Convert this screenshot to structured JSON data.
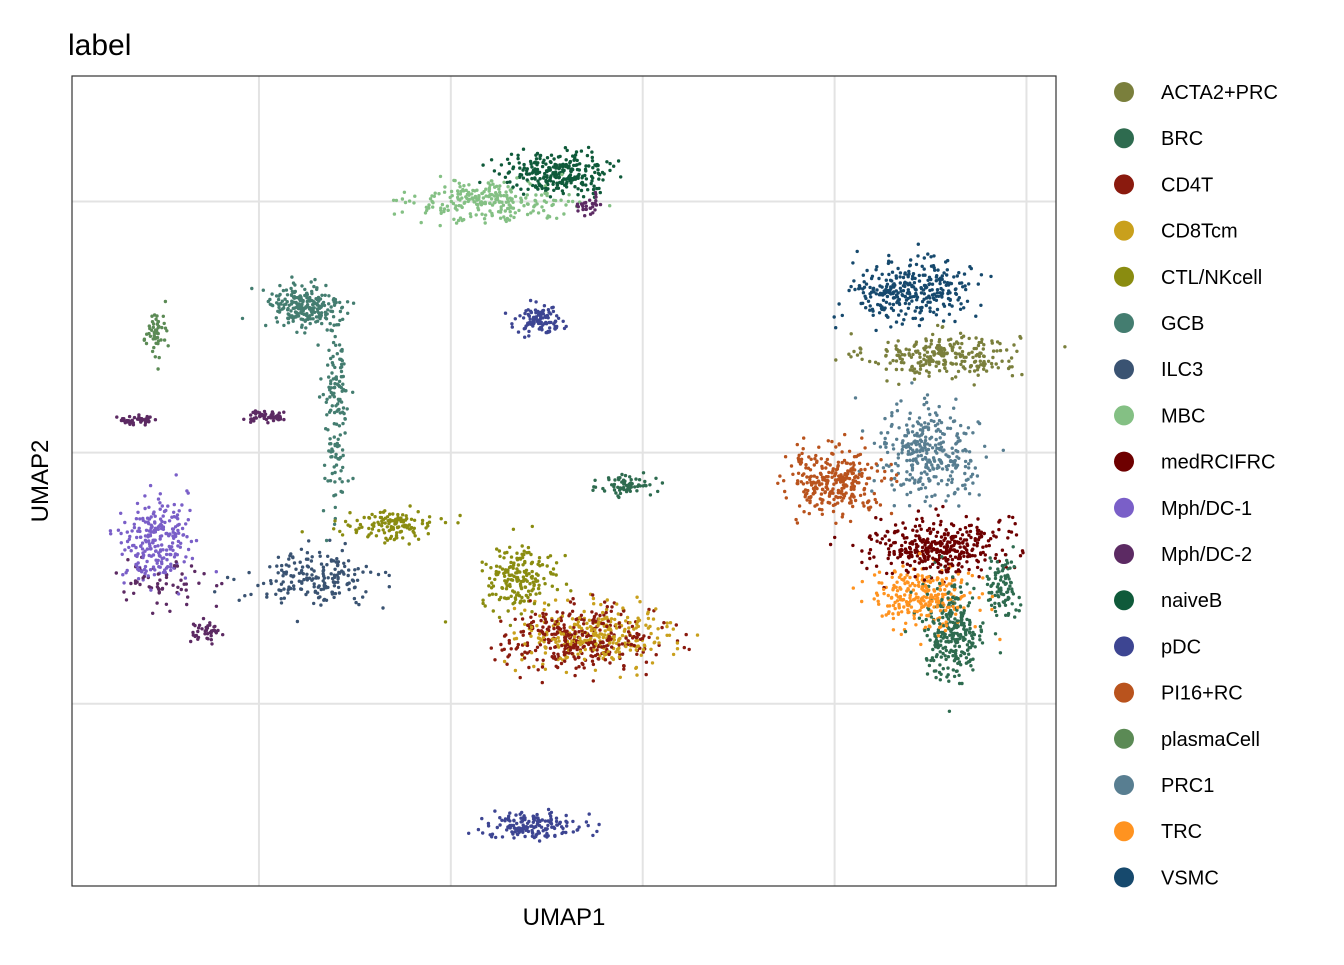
{
  "chart_data": {
    "type": "scatter",
    "title": "label",
    "xlabel": "UMAP1",
    "ylabel": "UMAP2",
    "grid": true,
    "tick_labels_shown": false,
    "legend_position": "right",
    "xlim": [
      0,
      100
    ],
    "ylim": [
      0,
      100
    ],
    "series": [
      {
        "name": "ACTA2+PRC",
        "color": "#7a7f3c",
        "clusters": [
          [
            88.5,
            65.5,
            7,
            2.5,
            260
          ]
        ]
      },
      {
        "name": "BRC",
        "color": "#2e6b4f",
        "clusters": [
          [
            56.5,
            49.5,
            2.5,
            1.4,
            70
          ],
          [
            89.5,
            31.5,
            3,
            5.5,
            280
          ],
          [
            94.5,
            37,
            1.5,
            3.5,
            90
          ]
        ]
      },
      {
        "name": "CD4T",
        "color": "#8a1a0e",
        "clusters": [
          [
            51.5,
            30.5,
            7,
            3.5,
            330
          ]
        ]
      },
      {
        "name": "CD8Tcm",
        "color": "#c9a01c",
        "clusters": [
          [
            53.5,
            31,
            7,
            3.5,
            280
          ]
        ]
      },
      {
        "name": "CTL/NKcell",
        "color": "#8a8c10",
        "clusters": [
          [
            45.5,
            38,
            3.5,
            3.5,
            190
          ],
          [
            32.5,
            44.5,
            4,
            1.6,
            130
          ]
        ]
      },
      {
        "name": "GCB",
        "color": "#447d70",
        "clusters": [
          [
            23.5,
            71.5,
            3.5,
            2.6,
            230
          ],
          [
            26.8,
            58,
            1.2,
            12,
            150
          ]
        ]
      },
      {
        "name": "ILC3",
        "color": "#3a5372",
        "clusters": [
          [
            24.5,
            38,
            6,
            3,
            190
          ]
        ]
      },
      {
        "name": "MBC",
        "color": "#84c084",
        "clusters": [
          [
            42.5,
            84.5,
            7,
            2.2,
            250
          ]
        ]
      },
      {
        "name": "medRCIFRC",
        "color": "#6e0000",
        "clusters": [
          [
            88,
            42,
            6,
            3.2,
            380
          ]
        ]
      },
      {
        "name": "Mph/DC-1",
        "color": "#7a5fc8",
        "clusters": [
          [
            8.5,
            42.5,
            3,
            5,
            240
          ]
        ]
      },
      {
        "name": "Mph/DC-2",
        "color": "#5c2a63",
        "clusters": [
          [
            6.5,
            57.5,
            1.8,
            0.5,
            40
          ],
          [
            19.5,
            58,
            2.2,
            0.6,
            50
          ],
          [
            13.5,
            31.5,
            1.4,
            1.2,
            40
          ],
          [
            10,
            37.5,
            4,
            2.5,
            60
          ],
          [
            52.5,
            84,
            1.5,
            1.2,
            30
          ]
        ]
      },
      {
        "name": "naiveB",
        "color": "#0f5a3a",
        "clusters": [
          [
            49.5,
            88,
            5,
            2.2,
            280
          ]
        ]
      },
      {
        "name": "pDC",
        "color": "#3d4592",
        "clusters": [
          [
            47.5,
            70,
            2.2,
            1.5,
            110
          ],
          [
            47,
            7.5,
            4.5,
            1.5,
            160
          ]
        ]
      },
      {
        "name": "PI16+RC",
        "color": "#b9531d",
        "clusters": [
          [
            77.5,
            50,
            4.5,
            3.5,
            300
          ]
        ]
      },
      {
        "name": "plasmaCell",
        "color": "#5b8a55",
        "clusters": [
          [
            8.5,
            68.5,
            1.2,
            2.5,
            50
          ]
        ]
      },
      {
        "name": "PRC1",
        "color": "#587e91",
        "clusters": [
          [
            87,
            53.5,
            4.5,
            5,
            320
          ]
        ]
      },
      {
        "name": "TRC",
        "color": "#ff9320",
        "clusters": [
          [
            86.5,
            35.5,
            4.5,
            3.5,
            260
          ]
        ]
      },
      {
        "name": "VSMC",
        "color": "#16496d",
        "clusters": [
          [
            85.5,
            73.5,
            5.5,
            3.5,
            320
          ]
        ]
      }
    ]
  }
}
